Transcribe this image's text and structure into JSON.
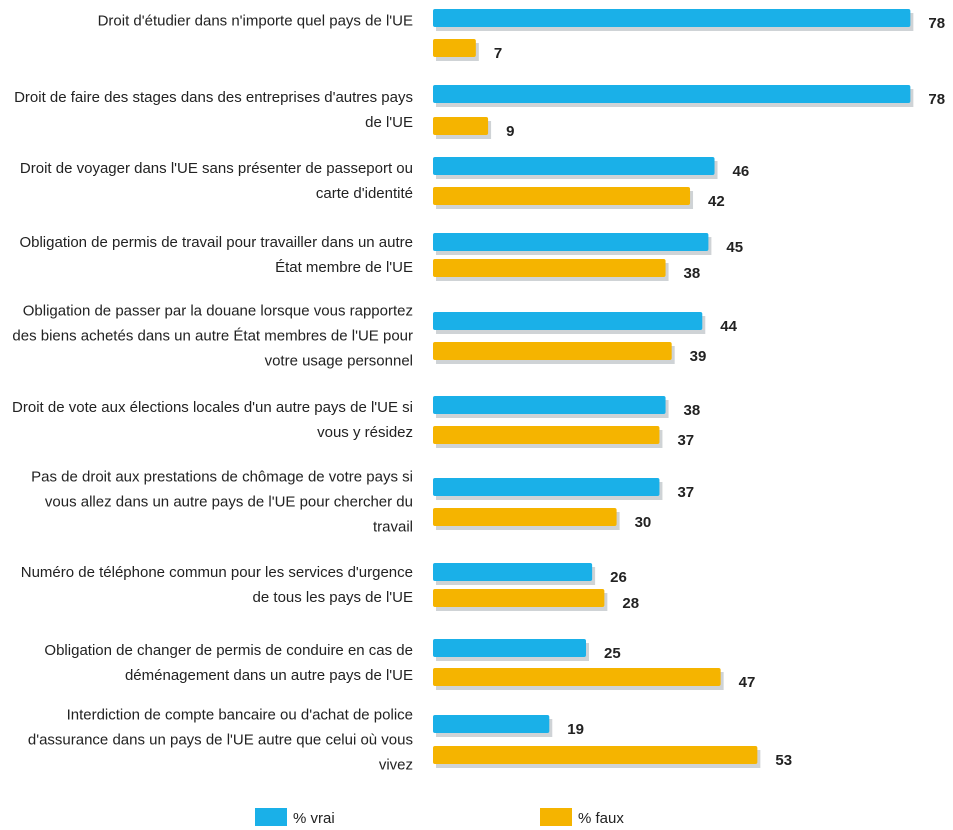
{
  "chart_data": {
    "type": "hbar",
    "categories": [
      "Droit d'étudier dans n'importe quel pays de l'UE",
      "Droit de faire des stages dans des entreprises d'autres pays de l'UE",
      "Droit de voyager dans l'UE sans présenter de passeport ou carte d'identité",
      "Obligation de permis de travail pour travailler dans un autre État membre de l'UE",
      "Obligation de passer par la douane lorsque vous rapportez des biens achetés dans un autre État membres de l'UE pour votre usage personnel",
      "Droit de vote aux élections locales d'un autre pays de l'UE si vous y résidez",
      "Pas de droit aux prestations de chômage de votre pays si vous allez dans un autre pays de l'UE pour chercher du travail",
      "Numéro de téléphone commun pour les services d'urgence de tous les pays de l'UE",
      "Obligation de changer de permis de conduire en cas de déménagement dans un autre pays de l'UE",
      "Interdiction de compte bancaire ou d'achat de police d'assurance dans un pays de l'UE autre que celui où vous vivez"
    ],
    "series": [
      {
        "name": "% vrai",
        "color": "#1ab0e8",
        "values": [
          78,
          78,
          46,
          45,
          44,
          38,
          37,
          26,
          25,
          19
        ]
      },
      {
        "name": "% faux",
        "color": "#f5b400",
        "values": [
          7,
          9,
          42,
          38,
          39,
          37,
          30,
          28,
          47,
          53
        ]
      }
    ]
  }
}
